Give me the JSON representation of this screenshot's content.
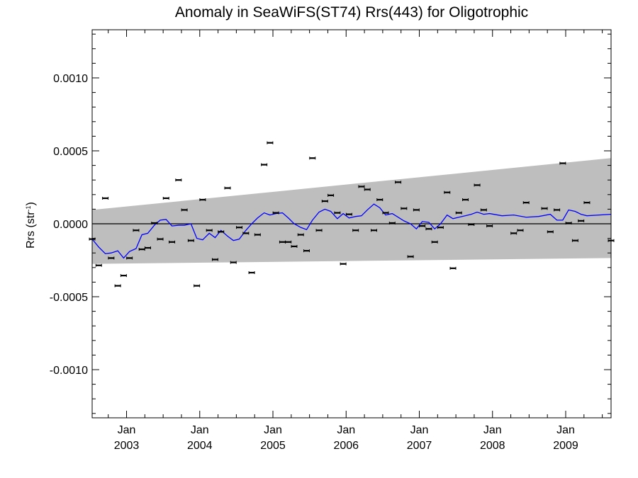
{
  "chart_data": {
    "type": "scatter",
    "title": "Anomaly in SeaWiFS(ST74) Rrs(443) for Oligotrophic",
    "ylabel": "Rrs (str",
    "ylabel_sup": "-1",
    "ylabel_close": ")",
    "xlabel": "",
    "xlim": [
      2002.53,
      2009.62
    ],
    "ylim": [
      -0.00133,
      0.00133
    ],
    "grid": false,
    "yticks": [
      {
        "value": 0.001,
        "label": "0.0010"
      },
      {
        "value": 0.0005,
        "label": "0.0005"
      },
      {
        "value": 0.0,
        "label": "0.0000"
      },
      {
        "value": -0.0005,
        "label": "-0.0005"
      },
      {
        "value": -0.001,
        "label": "-0.0010"
      }
    ],
    "xticks": [
      {
        "value": 2003.0,
        "month": "Jan",
        "year": "2003"
      },
      {
        "value": 2004.0,
        "month": "Jan",
        "year": "2004"
      },
      {
        "value": 2005.0,
        "month": "Jan",
        "year": "2005"
      },
      {
        "value": 2006.0,
        "month": "Jan",
        "year": "2006"
      },
      {
        "value": 2007.0,
        "month": "Jan",
        "year": "2007"
      },
      {
        "value": 2008.0,
        "month": "Jan",
        "year": "2008"
      },
      {
        "value": 2009.0,
        "month": "Jan",
        "year": "2009"
      }
    ],
    "band": {
      "color": "#bebebe",
      "x": [
        2002.53,
        2009.62
      ],
      "upper": [
        9.5e-05,
        0.00045
      ],
      "lower": [
        -0.000275,
        -0.000235
      ]
    },
    "zero_line_color": "#000000",
    "trend_color": "#0000ff",
    "points_color": "#000000",
    "points": {
      "x": [
        2002.53,
        2002.62,
        2002.71,
        2002.79,
        2002.88,
        2002.96,
        2003.04,
        2003.13,
        2003.21,
        2003.29,
        2003.38,
        2003.46,
        2003.54,
        2003.62,
        2003.71,
        2003.79,
        2003.88,
        2003.96,
        2004.04,
        2004.13,
        2004.21,
        2004.29,
        2004.38,
        2004.46,
        2004.54,
        2004.63,
        2004.71,
        2004.79,
        2004.88,
        2004.96,
        2005.04,
        2005.13,
        2005.21,
        2005.29,
        2005.38,
        2005.46,
        2005.54,
        2005.63,
        2005.71,
        2005.79,
        2005.88,
        2005.96,
        2006.04,
        2006.13,
        2006.21,
        2006.29,
        2006.38,
        2006.46,
        2006.54,
        2006.63,
        2006.71,
        2006.79,
        2006.88,
        2006.96,
        2007.04,
        2007.13,
        2007.21,
        2007.29,
        2007.38,
        2007.46,
        2007.54,
        2007.63,
        2007.71,
        2007.79,
        2007.88,
        2007.96,
        2008.29,
        2008.38,
        2008.46,
        2008.71,
        2008.79,
        2008.88,
        2008.96,
        2009.04,
        2009.13,
        2009.21,
        2009.29,
        2009.62
      ],
      "y": [
        -0.000105,
        -0.000285,
        0.000175,
        -0.000235,
        -0.000425,
        -0.000355,
        -0.000235,
        -4.5e-05,
        -0.000175,
        -0.000165,
        5e-06,
        -0.000105,
        0.000175,
        -0.000125,
        0.0003,
        9.5e-05,
        -0.000115,
        -0.000425,
        0.000165,
        -4.5e-05,
        -0.000245,
        -5.5e-05,
        0.000245,
        -0.000265,
        -2.5e-05,
        -6.5e-05,
        -0.000335,
        -7.5e-05,
        0.000405,
        0.000555,
        7.5e-05,
        -0.000125,
        -0.000125,
        -0.000155,
        -7.5e-05,
        -0.000185,
        0.00045,
        -4.5e-05,
        0.000155,
        0.000195,
        7.5e-05,
        -0.000275,
        6.5e-05,
        -4.5e-05,
        0.000255,
        0.000235,
        -4.5e-05,
        0.000165,
        7.5e-05,
        5e-06,
        0.000285,
        0.000105,
        -0.000225,
        9.5e-05,
        -1.5e-05,
        -3.5e-05,
        -0.000125,
        -2.5e-05,
        0.000215,
        -0.000305,
        7.5e-05,
        0.000165,
        -5e-06,
        0.000265,
        9.5e-05,
        -1.5e-05,
        -6.5e-05,
        -4.5e-05,
        0.000145,
        0.000105,
        -5.5e-05,
        9.5e-05,
        0.000415,
        5e-06,
        -0.000115,
        2e-05,
        0.000145,
        -0.000115
      ]
    },
    "trend": {
      "x": [
        2002.53,
        2002.62,
        2002.71,
        2002.79,
        2002.88,
        2002.96,
        2003.04,
        2003.13,
        2003.21,
        2003.29,
        2003.38,
        2003.46,
        2003.54,
        2003.62,
        2003.71,
        2003.79,
        2003.88,
        2003.96,
        2004.04,
        2004.13,
        2004.21,
        2004.29,
        2004.38,
        2004.46,
        2004.54,
        2004.63,
        2004.71,
        2004.79,
        2004.88,
        2004.96,
        2005.04,
        2005.13,
        2005.21,
        2005.29,
        2005.38,
        2005.46,
        2005.54,
        2005.63,
        2005.71,
        2005.79,
        2005.88,
        2005.96,
        2006.04,
        2006.13,
        2006.21,
        2006.29,
        2006.38,
        2006.46,
        2006.54,
        2006.63,
        2006.71,
        2006.79,
        2006.88,
        2006.96,
        2007.04,
        2007.13,
        2007.21,
        2007.29,
        2007.38,
        2007.46,
        2007.54,
        2007.63,
        2007.71,
        2007.79,
        2007.88,
        2007.96,
        2008.13,
        2008.29,
        2008.46,
        2008.63,
        2008.79,
        2008.88,
        2008.96,
        2009.04,
        2009.13,
        2009.21,
        2009.29,
        2009.62
      ],
      "y": [
        -0.000105,
        -0.00016,
        -0.000205,
        -0.0002,
        -0.000185,
        -0.000235,
        -0.00019,
        -0.00017,
        -7.5e-05,
        -6.5e-05,
        -1e-05,
        2.5e-05,
        3e-05,
        -1.5e-05,
        -1e-05,
        -1e-05,
        0.0,
        -0.0001,
        -0.00011,
        -6.5e-05,
        -9.5e-05,
        -4.5e-05,
        -8.5e-05,
        -0.000115,
        -0.000105,
        -4.5e-05,
        0.0,
        4e-05,
        7.5e-05,
        6e-05,
        7e-05,
        7.5e-05,
        4e-05,
        0.0,
        -2.5e-05,
        -4e-05,
        2.5e-05,
        8e-05,
        0.0001,
        8.5e-05,
        3.5e-05,
        7e-05,
        4e-05,
        5e-05,
        5.5e-05,
        9.5e-05,
        0.000135,
        0.00011,
        6e-05,
        7e-05,
        4.5e-05,
        2e-05,
        0.0,
        -3.5e-05,
        1.5e-05,
        1e-05,
        -3.5e-05,
        0.0,
        6e-05,
        3.5e-05,
        4.5e-05,
        5.5e-05,
        6.5e-05,
        8e-05,
        6.5e-05,
        7e-05,
        5.5e-05,
        6e-05,
        4.5e-05,
        5e-05,
        6.5e-05,
        2.5e-05,
        2.5e-05,
        9.5e-05,
        8.5e-05,
        6.5e-05,
        5.5e-05,
        6.5e-05
      ]
    }
  }
}
